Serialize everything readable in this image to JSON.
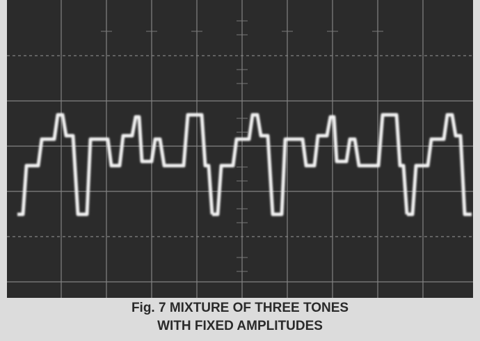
{
  "figure": {
    "caption_lines": [
      "Fig. 7  MIXTURE OF THREE TONES",
      "WITH FIXED AMPLITUDES"
    ]
  }
}
